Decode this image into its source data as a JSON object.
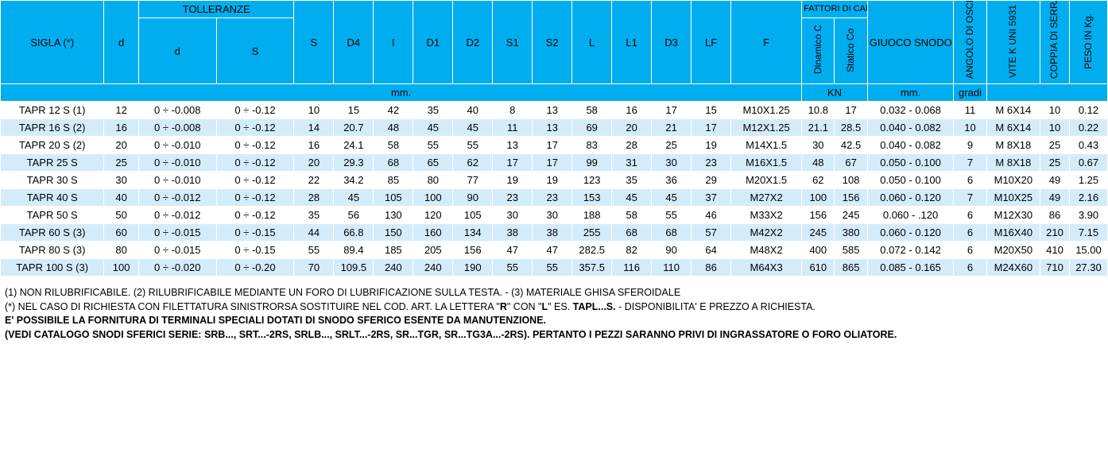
{
  "headers": {
    "sigla": "SIGLA   (*)",
    "d": "d",
    "tolleranze": "TOLLERANZE",
    "tol_d": "d",
    "tol_s": "S",
    "S": "S",
    "D4": "D4",
    "I": "I",
    "D1": "D1",
    "D2": "D2",
    "S1": "S1",
    "S2": "S2",
    "L": "L",
    "L1": "L1",
    "D3": "D3",
    "LF": "LF",
    "F": "F",
    "fattori": "FATTORI DI CARICO LIMITE",
    "dinamicoC": "Dinamico C",
    "staticoCo": "Statico Co",
    "giuoco": "GIUOCO SNODO RADIALE",
    "angolo": "ANGOLO DI OSCILLAZIONE α",
    "vitek": "VITE K UNI 5931",
    "coppia": "COPPIA DI SERRAGGO VITI Nm",
    "peso": "PESO IN Kg."
  },
  "units": {
    "mm": "mm.",
    "kn": "KN",
    "mm2": "mm.",
    "gradi": "gradi"
  },
  "rows": [
    {
      "sigla": "TAPR   12 S (1)",
      "d": "12",
      "td": "0 ÷ -0.008",
      "ts": "0 ÷ -0.12",
      "S": "10",
      "D4": "15",
      "I": "42",
      "D1": "35",
      "D2": "40",
      "S1": "8",
      "S2": "13",
      "L": "58",
      "L1": "16",
      "D3": "17",
      "LF": "15",
      "F": "M10X1.25",
      "C": "10.8",
      "Co": "17",
      "giuoco": "0.032 - 0.068",
      "ang": "11",
      "vite": "M  6X14",
      "cop": "10",
      "peso": "0.12"
    },
    {
      "sigla": "TAPR   16 S (2)",
      "d": "16",
      "td": "0 ÷ -0.008",
      "ts": "0 ÷ -0.12",
      "S": "14",
      "D4": "20.7",
      "I": "48",
      "D1": "45",
      "D2": "45",
      "S1": "11",
      "S2": "13",
      "L": "69",
      "L1": "20",
      "D3": "21",
      "LF": "17",
      "F": "M12X1.25",
      "C": "21.1",
      "Co": "28.5",
      "giuoco": "0.040 - 0.082",
      "ang": "10",
      "vite": "M  6X14",
      "cop": "10",
      "peso": "0.22"
    },
    {
      "sigla": "TAPR   20 S (2)",
      "d": "20",
      "td": "0 ÷ -0.010",
      "ts": "0 ÷ -0.12",
      "S": "16",
      "D4": "24.1",
      "I": "58",
      "D1": "55",
      "D2": "55",
      "S1": "13",
      "S2": "17",
      "L": "83",
      "L1": "28",
      "D3": "25",
      "LF": "19",
      "F": "M14X1.5",
      "C": "30",
      "Co": "42.5",
      "giuoco": "0.040 - 0.082",
      "ang": "9",
      "vite": "M  8X18",
      "cop": "25",
      "peso": "0.43"
    },
    {
      "sigla": "TAPR   25 S",
      "d": "25",
      "td": "0 ÷ -0.010",
      "ts": "0 ÷ -0.12",
      "S": "20",
      "D4": "29.3",
      "I": "68",
      "D1": "65",
      "D2": "62",
      "S1": "17",
      "S2": "17",
      "L": "99",
      "L1": "31",
      "D3": "30",
      "LF": "23",
      "F": "M16X1.5",
      "C": "48",
      "Co": "67",
      "giuoco": "0.050 - 0.100",
      "ang": "7",
      "vite": "M  8X18",
      "cop": "25",
      "peso": "0.67"
    },
    {
      "sigla": "TAPR   30 S",
      "d": "30",
      "td": "0 ÷ -0.010",
      "ts": "0 ÷ -0.12",
      "S": "22",
      "D4": "34.2",
      "I": "85",
      "D1": "80",
      "D2": "77",
      "S1": "19",
      "S2": "19",
      "L": "123",
      "L1": "35",
      "D3": "36",
      "LF": "29",
      "F": "M20X1.5",
      "C": "62",
      "Co": "108",
      "giuoco": "0.050 - 0.100",
      "ang": "6",
      "vite": "M10X20",
      "cop": "49",
      "peso": "1.25"
    },
    {
      "sigla": "TAPR   40 S",
      "d": "40",
      "td": "0 ÷ -0.012",
      "ts": "0 ÷ -0.12",
      "S": "28",
      "D4": "45",
      "I": "105",
      "D1": "100",
      "D2": "90",
      "S1": "23",
      "S2": "23",
      "L": "153",
      "L1": "45",
      "D3": "45",
      "LF": "37",
      "F": "M27X2",
      "C": "100",
      "Co": "156",
      "giuoco": "0.060 - 0.120",
      "ang": "7",
      "vite": "M10X25",
      "cop": "49",
      "peso": "2.16"
    },
    {
      "sigla": "TAPR   50 S",
      "d": "50",
      "td": "0 ÷ -0.012",
      "ts": "0 ÷ -0.12",
      "S": "35",
      "D4": "56",
      "I": "130",
      "D1": "120",
      "D2": "105",
      "S1": "30",
      "S2": "30",
      "L": "188",
      "L1": "58",
      "D3": "55",
      "LF": "46",
      "F": "M33X2",
      "C": "156",
      "Co": "245",
      "giuoco": "0.060 - .120",
      "ang": "6",
      "vite": "M12X30",
      "cop": "86",
      "peso": "3.90"
    },
    {
      "sigla": "TAPR   60 S (3)",
      "d": "60",
      "td": "0 ÷ -0.015",
      "ts": "0 ÷ -0.15",
      "S": "44",
      "D4": "66.8",
      "I": "150",
      "D1": "160",
      "D2": "134",
      "S1": "38",
      "S2": "38",
      "L": "255",
      "L1": "68",
      "D3": "68",
      "LF": "57",
      "F": "M42X2",
      "C": "245",
      "Co": "380",
      "giuoco": "0.060 - 0.120",
      "ang": "6",
      "vite": "M16X40",
      "cop": "210",
      "peso": "7.15"
    },
    {
      "sigla": "TAPR   80 S (3)",
      "d": "80",
      "td": "0 ÷ -0.015",
      "ts": "0 ÷ -0.15",
      "S": "55",
      "D4": "89.4",
      "I": "185",
      "D1": "205",
      "D2": "156",
      "S1": "47",
      "S2": "47",
      "L": "282.5",
      "L1": "82",
      "D3": "90",
      "LF": "64",
      "F": "M48X2",
      "C": "400",
      "Co": "585",
      "giuoco": "0.072 - 0.142",
      "ang": "6",
      "vite": "M20X50",
      "cop": "410",
      "peso": "15.00"
    },
    {
      "sigla": "TAPR 100 S (3)",
      "d": "100",
      "td": "0 ÷ -0.020",
      "ts": "0 ÷ -0.20",
      "S": "70",
      "D4": "109.5",
      "I": "240",
      "D1": "240",
      "D2": "190",
      "S1": "55",
      "S2": "55",
      "L": "357.5",
      "L1": "116",
      "D3": "110",
      "LF": "86",
      "F": "M64X3",
      "C": "610",
      "Co": "865",
      "giuoco": "0.085 - 0.165",
      "ang": "6",
      "vite": "M24X60",
      "cop": "710",
      "peso": "27.30"
    }
  ],
  "notes": {
    "n1": "(1)  NON RILUBRIFICABILE.     (2)  RILUBRIFICABILE MEDIANTE UN FORO DI LUBRIFICAZIONE SULLA TESTA.   -   (3)   MATERIALE GHISA SFEROIDALE",
    "n2a": "(*)   NEL CASO DI RICHIESTA CON FILETTATURA SINISTRORSA SOSTITUIRE NEL COD. ART. LA LETTERA \"",
    "n2b": "R",
    "n2c": "\" CON \"",
    "n2d": "L",
    "n2e": "\"   ES. ",
    "n2f": "TAPL...S.",
    "n2g": " - DISPONIBILITA' E PREZZO A RICHIESTA.",
    "n3": "E' POSSIBILE LA FORNITURA DI TERMINALI SPECIALI DOTATI DI SNODO SFERICO ESENTE DA MANUTENZIONE.",
    "n4": "(VEDI CATALOGO SNODI SFERICI SERIE: SRB..., SRT...-2RS, SRLB..., SRLT...-2RS, SR...TGR, SR...TG3A...-2RS). PERTANTO I PEZZI SARANNO PRIVI DI INGRASSATORE O FORO OLIATORE."
  },
  "colors": {
    "header": "#00aeef",
    "rowEven": "#d4ecf9",
    "rowOdd": "#ffffff"
  }
}
